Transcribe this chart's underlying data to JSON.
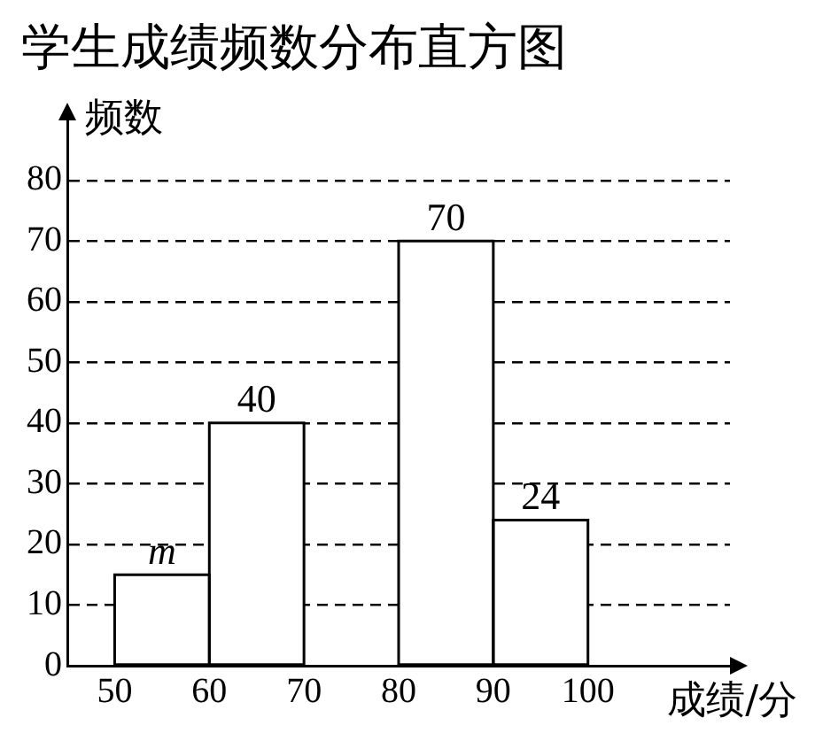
{
  "chart_data": {
    "type": "histogram",
    "title": "学生成绩频数分布直方图",
    "ylabel": "频数",
    "xlabel": "成绩/分",
    "bins": [
      50,
      60,
      70,
      80,
      90,
      100
    ],
    "values": [
      15,
      40,
      null,
      70,
      24
    ],
    "value_labels": [
      "m",
      "40",
      null,
      "70",
      "24"
    ],
    "color": "#ffffff",
    "xlim": [
      45,
      115
    ],
    "xticks": [
      50,
      60,
      70,
      80,
      90,
      100
    ],
    "ylim": [
      0,
      90
    ],
    "yticks": [
      0,
      10,
      20,
      30,
      40,
      50,
      60,
      70,
      80
    ],
    "grid": "y",
    "legend": false
  }
}
